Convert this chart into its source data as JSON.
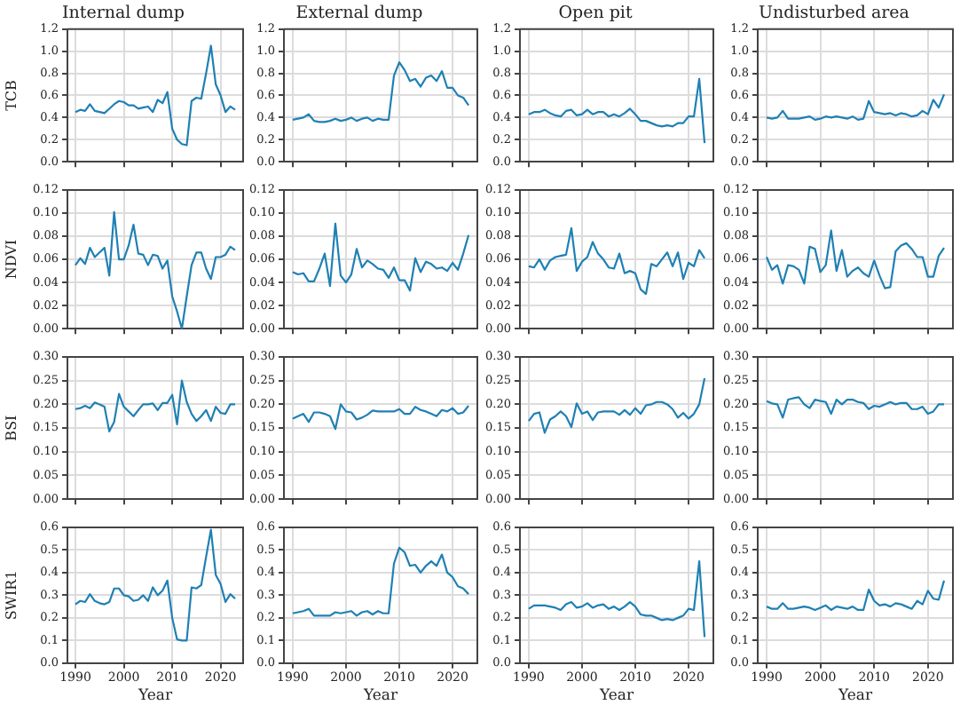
{
  "chart_data": [
    {
      "type": "line",
      "title": "Internal dump",
      "ylabel": "TCB",
      "x": [
        1990,
        1991,
        1992,
        1993,
        1994,
        1995,
        1996,
        1997,
        1998,
        1999,
        2000,
        2001,
        2002,
        2003,
        2004,
        2005,
        2006,
        2007,
        2008,
        2009,
        2010,
        2011,
        2012,
        2013,
        2014,
        2015,
        2016,
        2017,
        2018,
        2019,
        2020,
        2021,
        2022,
        2023
      ],
      "xlim": [
        1988.35,
        2024.65
      ],
      "xticks": [
        1990,
        2000,
        2010,
        2020
      ],
      "ylim": [
        0,
        1.2
      ],
      "yticks": [
        {
          "value": 0,
          "label": "0.0"
        },
        0.2,
        0.4,
        0.6,
        0.8,
        {
          "value": 1,
          "label": "1.0"
        },
        1.2
      ],
      "grid": true,
      "tick_labels": "y",
      "series": [
        {
          "color": "#1f80b4",
          "values": [
            0.45,
            0.47,
            0.46,
            0.52,
            0.46,
            0.45,
            0.44,
            0.48,
            0.52,
            0.55,
            0.54,
            0.51,
            0.51,
            0.48,
            0.49,
            0.5,
            0.45,
            0.56,
            0.53,
            0.63,
            0.3,
            0.2,
            0.16,
            0.15,
            0.55,
            0.58,
            0.57,
            0.8,
            1.05,
            0.7,
            0.6,
            0.45,
            0.5,
            0.47
          ]
        }
      ]
    },
    {
      "type": "line",
      "title": "External dump",
      "x": [
        1990,
        1991,
        1992,
        1993,
        1994,
        1995,
        1996,
        1997,
        1998,
        1999,
        2000,
        2001,
        2002,
        2003,
        2004,
        2005,
        2006,
        2007,
        2008,
        2009,
        2010,
        2011,
        2012,
        2013,
        2014,
        2015,
        2016,
        2017,
        2018,
        2019,
        2020,
        2021,
        2022,
        2023
      ],
      "xlim": [
        1988.35,
        2024.65
      ],
      "xticks": [
        1990,
        2000,
        2010,
        2020
      ],
      "ylim": [
        0,
        1.2
      ],
      "yticks": [
        {
          "value": 0,
          "label": "0.0"
        },
        0.2,
        0.4,
        0.6,
        0.8,
        {
          "value": 1,
          "label": "1.0"
        },
        1.2
      ],
      "grid": true,
      "tick_labels": "y",
      "series": [
        {
          "color": "#1f80b4",
          "values": [
            0.38,
            0.39,
            0.4,
            0.43,
            0.37,
            0.36,
            0.36,
            0.37,
            0.39,
            0.37,
            0.38,
            0.4,
            0.37,
            0.39,
            0.4,
            0.37,
            0.39,
            0.38,
            0.38,
            0.78,
            0.9,
            0.83,
            0.73,
            0.75,
            0.68,
            0.76,
            0.78,
            0.73,
            0.82,
            0.67,
            0.67,
            0.6,
            0.58,
            0.51
          ]
        }
      ]
    },
    {
      "type": "line",
      "title": "Open pit",
      "x": [
        1990,
        1991,
        1992,
        1993,
        1994,
        1995,
        1996,
        1997,
        1998,
        1999,
        2000,
        2001,
        2002,
        2003,
        2004,
        2005,
        2006,
        2007,
        2008,
        2009,
        2010,
        2011,
        2012,
        2013,
        2014,
        2015,
        2016,
        2017,
        2018,
        2019,
        2020,
        2021,
        2022,
        2023
      ],
      "xlim": [
        1988.35,
        2024.65
      ],
      "xticks": [
        1990,
        2000,
        2010,
        2020
      ],
      "ylim": [
        0,
        1.2
      ],
      "yticks": [
        {
          "value": 0,
          "label": "0.0"
        },
        0.2,
        0.4,
        0.6,
        0.8,
        {
          "value": 1,
          "label": "1.0"
        },
        1.2
      ],
      "grid": true,
      "tick_labels": "y",
      "series": [
        {
          "color": "#1f80b4",
          "values": [
            0.43,
            0.45,
            0.45,
            0.47,
            0.44,
            0.42,
            0.41,
            0.46,
            0.47,
            0.42,
            0.43,
            0.47,
            0.43,
            0.45,
            0.45,
            0.41,
            0.43,
            0.41,
            0.44,
            0.48,
            0.43,
            0.37,
            0.37,
            0.35,
            0.33,
            0.32,
            0.33,
            0.32,
            0.35,
            0.35,
            0.41,
            0.41,
            0.75,
            0.17
          ]
        }
      ]
    },
    {
      "type": "line",
      "title": "Undisturbed area",
      "x": [
        1990,
        1991,
        1992,
        1993,
        1994,
        1995,
        1996,
        1997,
        1998,
        1999,
        2000,
        2001,
        2002,
        2003,
        2004,
        2005,
        2006,
        2007,
        2008,
        2009,
        2010,
        2011,
        2012,
        2013,
        2014,
        2015,
        2016,
        2017,
        2018,
        2019,
        2020,
        2021,
        2022,
        2023
      ],
      "xlim": [
        1988.35,
        2024.65
      ],
      "xticks": [
        1990,
        2000,
        2010,
        2020
      ],
      "ylim": [
        0,
        1.2
      ],
      "yticks": [
        {
          "value": 0,
          "label": "0.0"
        },
        0.2,
        0.4,
        0.6,
        0.8,
        {
          "value": 1,
          "label": "1.0"
        },
        1.2
      ],
      "grid": true,
      "tick_labels": "y",
      "series": [
        {
          "color": "#1f80b4",
          "values": [
            0.4,
            0.39,
            0.4,
            0.46,
            0.39,
            0.39,
            0.39,
            0.4,
            0.41,
            0.38,
            0.39,
            0.41,
            0.4,
            0.41,
            0.4,
            0.39,
            0.41,
            0.38,
            0.39,
            0.55,
            0.45,
            0.44,
            0.43,
            0.44,
            0.42,
            0.44,
            0.43,
            0.41,
            0.42,
            0.46,
            0.43,
            0.56,
            0.49,
            0.61
          ]
        }
      ]
    },
    {
      "type": "line",
      "ylabel": "NDVI",
      "x": [
        1990,
        1991,
        1992,
        1993,
        1994,
        1995,
        1996,
        1997,
        1998,
        1999,
        2000,
        2001,
        2002,
        2003,
        2004,
        2005,
        2006,
        2007,
        2008,
        2009,
        2010,
        2011,
        2012,
        2013,
        2014,
        2015,
        2016,
        2017,
        2018,
        2019,
        2020,
        2021,
        2022,
        2023
      ],
      "xlim": [
        1988.35,
        2024.65
      ],
      "xticks": [
        1990,
        2000,
        2010,
        2020
      ],
      "ylim": [
        0,
        0.12
      ],
      "yticks": [
        {
          "value": 0,
          "label": "0.00"
        },
        0.02,
        0.04,
        0.06,
        0.08,
        {
          "value": 0.1,
          "label": "0.10"
        },
        0.12
      ],
      "grid": true,
      "tick_labels": "y",
      "series": [
        {
          "color": "#1f80b4",
          "values": [
            0.055,
            0.061,
            0.056,
            0.07,
            0.062,
            0.066,
            0.07,
            0.046,
            0.101,
            0.06,
            0.06,
            0.072,
            0.09,
            0.065,
            0.064,
            0.055,
            0.064,
            0.063,
            0.052,
            0.059,
            0.028,
            0.015,
            0.0,
            0.028,
            0.055,
            0.066,
            0.066,
            0.052,
            0.043,
            0.062,
            0.062,
            0.064,
            0.071,
            0.068
          ]
        }
      ]
    },
    {
      "type": "line",
      "x": [
        1990,
        1991,
        1992,
        1993,
        1994,
        1995,
        1996,
        1997,
        1998,
        1999,
        2000,
        2001,
        2002,
        2003,
        2004,
        2005,
        2006,
        2007,
        2008,
        2009,
        2010,
        2011,
        2012,
        2013,
        2014,
        2015,
        2016,
        2017,
        2018,
        2019,
        2020,
        2021,
        2022,
        2023
      ],
      "xlim": [
        1988.35,
        2024.65
      ],
      "xticks": [
        1990,
        2000,
        2010,
        2020
      ],
      "ylim": [
        0,
        0.12
      ],
      "yticks": [
        {
          "value": 0,
          "label": "0.00"
        },
        0.02,
        0.04,
        0.06,
        0.08,
        {
          "value": 0.1,
          "label": "0.10"
        },
        0.12
      ],
      "grid": true,
      "tick_labels": "y",
      "series": [
        {
          "color": "#1f80b4",
          "values": [
            0.049,
            0.047,
            0.048,
            0.041,
            0.041,
            0.052,
            0.065,
            0.037,
            0.091,
            0.046,
            0.04,
            0.047,
            0.069,
            0.053,
            0.059,
            0.056,
            0.052,
            0.051,
            0.044,
            0.053,
            0.042,
            0.042,
            0.033,
            0.061,
            0.049,
            0.058,
            0.056,
            0.052,
            0.053,
            0.05,
            0.057,
            0.051,
            0.065,
            0.081
          ]
        }
      ]
    },
    {
      "type": "line",
      "x": [
        1990,
        1991,
        1992,
        1993,
        1994,
        1995,
        1996,
        1997,
        1998,
        1999,
        2000,
        2001,
        2002,
        2003,
        2004,
        2005,
        2006,
        2007,
        2008,
        2009,
        2010,
        2011,
        2012,
        2013,
        2014,
        2015,
        2016,
        2017,
        2018,
        2019,
        2020,
        2021,
        2022,
        2023
      ],
      "xlim": [
        1988.35,
        2024.65
      ],
      "xticks": [
        1990,
        2000,
        2010,
        2020
      ],
      "ylim": [
        0,
        0.12
      ],
      "yticks": [
        {
          "value": 0,
          "label": "0.00"
        },
        0.02,
        0.04,
        0.06,
        0.08,
        {
          "value": 0.1,
          "label": "0.10"
        },
        0.12
      ],
      "grid": true,
      "tick_labels": "y",
      "series": [
        {
          "color": "#1f80b4",
          "values": [
            0.054,
            0.053,
            0.06,
            0.051,
            0.059,
            0.062,
            0.063,
            0.064,
            0.087,
            0.05,
            0.058,
            0.062,
            0.075,
            0.065,
            0.06,
            0.053,
            0.052,
            0.065,
            0.048,
            0.05,
            0.048,
            0.034,
            0.03,
            0.056,
            0.054,
            0.06,
            0.066,
            0.054,
            0.066,
            0.043,
            0.057,
            0.054,
            0.068,
            0.061
          ]
        }
      ]
    },
    {
      "type": "line",
      "x": [
        1990,
        1991,
        1992,
        1993,
        1994,
        1995,
        1996,
        1997,
        1998,
        1999,
        2000,
        2001,
        2002,
        2003,
        2004,
        2005,
        2006,
        2007,
        2008,
        2009,
        2010,
        2011,
        2012,
        2013,
        2014,
        2015,
        2016,
        2017,
        2018,
        2019,
        2020,
        2021,
        2022,
        2023
      ],
      "xlim": [
        1988.35,
        2024.65
      ],
      "xticks": [
        1990,
        2000,
        2010,
        2020
      ],
      "ylim": [
        0,
        0.12
      ],
      "yticks": [
        {
          "value": 0,
          "label": "0.00"
        },
        0.02,
        0.04,
        0.06,
        0.08,
        {
          "value": 0.1,
          "label": "0.10"
        },
        0.12
      ],
      "grid": true,
      "tick_labels": "y",
      "series": [
        {
          "color": "#1f80b4",
          "values": [
            0.062,
            0.051,
            0.055,
            0.039,
            0.055,
            0.054,
            0.051,
            0.039,
            0.071,
            0.069,
            0.049,
            0.055,
            0.085,
            0.05,
            0.068,
            0.045,
            0.05,
            0.053,
            0.048,
            0.045,
            0.059,
            0.046,
            0.035,
            0.036,
            0.067,
            0.072,
            0.074,
            0.069,
            0.062,
            0.062,
            0.045,
            0.045,
            0.063,
            0.07
          ]
        }
      ]
    },
    {
      "type": "line",
      "ylabel": "BSI",
      "x": [
        1990,
        1991,
        1992,
        1993,
        1994,
        1995,
        1996,
        1997,
        1998,
        1999,
        2000,
        2001,
        2002,
        2003,
        2004,
        2005,
        2006,
        2007,
        2008,
        2009,
        2010,
        2011,
        2012,
        2013,
        2014,
        2015,
        2016,
        2017,
        2018,
        2019,
        2020,
        2021,
        2022,
        2023
      ],
      "xlim": [
        1988.35,
        2024.65
      ],
      "xticks": [
        1990,
        2000,
        2010,
        2020
      ],
      "ylim": [
        0,
        0.3
      ],
      "yticks": [
        {
          "value": 0,
          "label": "0.00"
        },
        0.05,
        {
          "value": 0.1,
          "label": "0.10"
        },
        0.15,
        {
          "value": 0.2,
          "label": "0.20"
        },
        0.25,
        {
          "value": 0.3,
          "label": "0.30"
        }
      ],
      "grid": true,
      "tick_labels": "y",
      "series": [
        {
          "color": "#1f80b4",
          "values": [
            0.19,
            0.192,
            0.197,
            0.192,
            0.204,
            0.2,
            0.195,
            0.143,
            0.163,
            0.222,
            0.195,
            0.185,
            0.175,
            0.188,
            0.2,
            0.2,
            0.202,
            0.188,
            0.203,
            0.203,
            0.22,
            0.158,
            0.25,
            0.205,
            0.18,
            0.165,
            0.175,
            0.188,
            0.165,
            0.195,
            0.182,
            0.18,
            0.2,
            0.2
          ]
        }
      ]
    },
    {
      "type": "line",
      "x": [
        1990,
        1991,
        1992,
        1993,
        1994,
        1995,
        1996,
        1997,
        1998,
        1999,
        2000,
        2001,
        2002,
        2003,
        2004,
        2005,
        2006,
        2007,
        2008,
        2009,
        2010,
        2011,
        2012,
        2013,
        2014,
        2015,
        2016,
        2017,
        2018,
        2019,
        2020,
        2021,
        2022,
        2023
      ],
      "xlim": [
        1988.35,
        2024.65
      ],
      "xticks": [
        1990,
        2000,
        2010,
        2020
      ],
      "ylim": [
        0,
        0.3
      ],
      "yticks": [
        {
          "value": 0,
          "label": "0.00"
        },
        0.05,
        {
          "value": 0.1,
          "label": "0.10"
        },
        0.15,
        {
          "value": 0.2,
          "label": "0.20"
        },
        0.25,
        {
          "value": 0.3,
          "label": "0.30"
        }
      ],
      "grid": true,
      "tick_labels": "y",
      "series": [
        {
          "color": "#1f80b4",
          "values": [
            0.17,
            0.175,
            0.18,
            0.163,
            0.183,
            0.183,
            0.18,
            0.175,
            0.148,
            0.2,
            0.185,
            0.183,
            0.168,
            0.172,
            0.178,
            0.187,
            0.185,
            0.185,
            0.185,
            0.185,
            0.19,
            0.18,
            0.18,
            0.195,
            0.188,
            0.185,
            0.18,
            0.175,
            0.188,
            0.185,
            0.192,
            0.18,
            0.183,
            0.197
          ]
        }
      ]
    },
    {
      "type": "line",
      "x": [
        1990,
        1991,
        1992,
        1993,
        1994,
        1995,
        1996,
        1997,
        1998,
        1999,
        2000,
        2001,
        2002,
        2003,
        2004,
        2005,
        2006,
        2007,
        2008,
        2009,
        2010,
        2011,
        2012,
        2013,
        2014,
        2015,
        2016,
        2017,
        2018,
        2019,
        2020,
        2021,
        2022,
        2023
      ],
      "xlim": [
        1988.35,
        2024.65
      ],
      "xticks": [
        1990,
        2000,
        2010,
        2020
      ],
      "ylim": [
        0,
        0.3
      ],
      "yticks": [
        {
          "value": 0,
          "label": "0.00"
        },
        0.05,
        {
          "value": 0.1,
          "label": "0.10"
        },
        0.15,
        {
          "value": 0.2,
          "label": "0.20"
        },
        0.25,
        {
          "value": 0.3,
          "label": "0.30"
        }
      ],
      "grid": true,
      "tick_labels": "y",
      "series": [
        {
          "color": "#1f80b4",
          "values": [
            0.165,
            0.18,
            0.183,
            0.14,
            0.168,
            0.175,
            0.185,
            0.175,
            0.152,
            0.202,
            0.18,
            0.185,
            0.167,
            0.183,
            0.185,
            0.185,
            0.185,
            0.178,
            0.188,
            0.178,
            0.192,
            0.18,
            0.198,
            0.2,
            0.205,
            0.205,
            0.2,
            0.19,
            0.172,
            0.182,
            0.17,
            0.18,
            0.2,
            0.255
          ]
        }
      ]
    },
    {
      "type": "line",
      "x": [
        1990,
        1991,
        1992,
        1993,
        1994,
        1995,
        1996,
        1997,
        1998,
        1999,
        2000,
        2001,
        2002,
        2003,
        2004,
        2005,
        2006,
        2007,
        2008,
        2009,
        2010,
        2011,
        2012,
        2013,
        2014,
        2015,
        2016,
        2017,
        2018,
        2019,
        2020,
        2021,
        2022,
        2023
      ],
      "xlim": [
        1988.35,
        2024.65
      ],
      "xticks": [
        1990,
        2000,
        2010,
        2020
      ],
      "ylim": [
        0,
        0.3
      ],
      "yticks": [
        {
          "value": 0,
          "label": "0.00"
        },
        0.05,
        {
          "value": 0.1,
          "label": "0.10"
        },
        0.15,
        {
          "value": 0.2,
          "label": "0.20"
        },
        0.25,
        {
          "value": 0.3,
          "label": "0.30"
        }
      ],
      "grid": true,
      "tick_labels": "y",
      "series": [
        {
          "color": "#1f80b4",
          "values": [
            0.207,
            0.202,
            0.2,
            0.172,
            0.21,
            0.213,
            0.215,
            0.2,
            0.192,
            0.21,
            0.207,
            0.205,
            0.18,
            0.21,
            0.2,
            0.21,
            0.21,
            0.205,
            0.203,
            0.19,
            0.197,
            0.195,
            0.2,
            0.205,
            0.2,
            0.203,
            0.203,
            0.19,
            0.19,
            0.195,
            0.18,
            0.185,
            0.2,
            0.2
          ]
        }
      ]
    },
    {
      "type": "line",
      "ylabel": "SWIR1",
      "xlabel": "Year",
      "x": [
        1990,
        1991,
        1992,
        1993,
        1994,
        1995,
        1996,
        1997,
        1998,
        1999,
        2000,
        2001,
        2002,
        2003,
        2004,
        2005,
        2006,
        2007,
        2008,
        2009,
        2010,
        2011,
        2012,
        2013,
        2014,
        2015,
        2016,
        2017,
        2018,
        2019,
        2020,
        2021,
        2022,
        2023
      ],
      "xlim": [
        1988.35,
        2024.65
      ],
      "xticks": [
        1990,
        2000,
        2010,
        2020
      ],
      "ylim": [
        0,
        0.6
      ],
      "yticks": [
        {
          "value": 0,
          "label": "0.0"
        },
        0.1,
        0.2,
        0.3,
        0.4,
        0.5,
        0.6
      ],
      "grid": true,
      "series": [
        {
          "color": "#1f80b4",
          "values": [
            0.26,
            0.275,
            0.27,
            0.305,
            0.275,
            0.265,
            0.26,
            0.27,
            0.33,
            0.33,
            0.3,
            0.295,
            0.275,
            0.28,
            0.3,
            0.275,
            0.335,
            0.3,
            0.32,
            0.365,
            0.2,
            0.105,
            0.1,
            0.1,
            0.335,
            0.33,
            0.345,
            0.47,
            0.59,
            0.39,
            0.35,
            0.27,
            0.305,
            0.285
          ]
        }
      ]
    },
    {
      "type": "line",
      "xlabel": "Year",
      "x": [
        1990,
        1991,
        1992,
        1993,
        1994,
        1995,
        1996,
        1997,
        1998,
        1999,
        2000,
        2001,
        2002,
        2003,
        2004,
        2005,
        2006,
        2007,
        2008,
        2009,
        2010,
        2011,
        2012,
        2013,
        2014,
        2015,
        2016,
        2017,
        2018,
        2019,
        2020,
        2021,
        2022,
        2023
      ],
      "xlim": [
        1988.35,
        2024.65
      ],
      "xticks": [
        1990,
        2000,
        2010,
        2020
      ],
      "ylim": [
        0,
        0.6
      ],
      "yticks": [
        {
          "value": 0,
          "label": "0.0"
        },
        0.1,
        0.2,
        0.3,
        0.4,
        0.5,
        0.6
      ],
      "grid": true,
      "series": [
        {
          "color": "#1f80b4",
          "values": [
            0.22,
            0.225,
            0.23,
            0.24,
            0.21,
            0.21,
            0.21,
            0.21,
            0.225,
            0.22,
            0.225,
            0.23,
            0.21,
            0.225,
            0.23,
            0.215,
            0.23,
            0.22,
            0.22,
            0.44,
            0.51,
            0.49,
            0.43,
            0.435,
            0.4,
            0.43,
            0.45,
            0.43,
            0.48,
            0.4,
            0.38,
            0.34,
            0.33,
            0.305
          ]
        }
      ]
    },
    {
      "type": "line",
      "xlabel": "Year",
      "x": [
        1990,
        1991,
        1992,
        1993,
        1994,
        1995,
        1996,
        1997,
        1998,
        1999,
        2000,
        2001,
        2002,
        2003,
        2004,
        2005,
        2006,
        2007,
        2008,
        2009,
        2010,
        2011,
        2012,
        2013,
        2014,
        2015,
        2016,
        2017,
        2018,
        2019,
        2020,
        2021,
        2022,
        2023
      ],
      "xlim": [
        1988.35,
        2024.65
      ],
      "xticks": [
        1990,
        2000,
        2010,
        2020
      ],
      "ylim": [
        0,
        0.6
      ],
      "yticks": [
        {
          "value": 0,
          "label": "0.0"
        },
        0.1,
        0.2,
        0.3,
        0.4,
        0.5,
        0.6
      ],
      "grid": true,
      "series": [
        {
          "color": "#1f80b4",
          "values": [
            0.24,
            0.255,
            0.255,
            0.255,
            0.25,
            0.245,
            0.235,
            0.26,
            0.27,
            0.245,
            0.25,
            0.265,
            0.245,
            0.255,
            0.26,
            0.24,
            0.25,
            0.235,
            0.25,
            0.27,
            0.25,
            0.215,
            0.21,
            0.21,
            0.2,
            0.19,
            0.195,
            0.19,
            0.2,
            0.21,
            0.24,
            0.235,
            0.45,
            0.115
          ]
        }
      ]
    },
    {
      "type": "line",
      "xlabel": "Year",
      "x": [
        1990,
        1991,
        1992,
        1993,
        1994,
        1995,
        1996,
        1997,
        1998,
        1999,
        2000,
        2001,
        2002,
        2003,
        2004,
        2005,
        2006,
        2007,
        2008,
        2009,
        2010,
        2011,
        2012,
        2013,
        2014,
        2015,
        2016,
        2017,
        2018,
        2019,
        2020,
        2021,
        2022,
        2023
      ],
      "xlim": [
        1988.35,
        2024.65
      ],
      "xticks": [
        1990,
        2000,
        2010,
        2020
      ],
      "ylim": [
        0,
        0.6
      ],
      "yticks": [
        {
          "value": 0,
          "label": "0.0"
        },
        0.1,
        0.2,
        0.3,
        0.4,
        0.5,
        0.6
      ],
      "grid": true,
      "series": [
        {
          "color": "#1f80b4",
          "values": [
            0.25,
            0.24,
            0.24,
            0.265,
            0.24,
            0.24,
            0.245,
            0.25,
            0.245,
            0.235,
            0.245,
            0.255,
            0.235,
            0.25,
            0.245,
            0.24,
            0.25,
            0.235,
            0.235,
            0.325,
            0.275,
            0.255,
            0.26,
            0.25,
            0.265,
            0.26,
            0.25,
            0.24,
            0.275,
            0.26,
            0.32,
            0.285,
            0.28,
            0.365
          ]
        }
      ]
    }
  ]
}
